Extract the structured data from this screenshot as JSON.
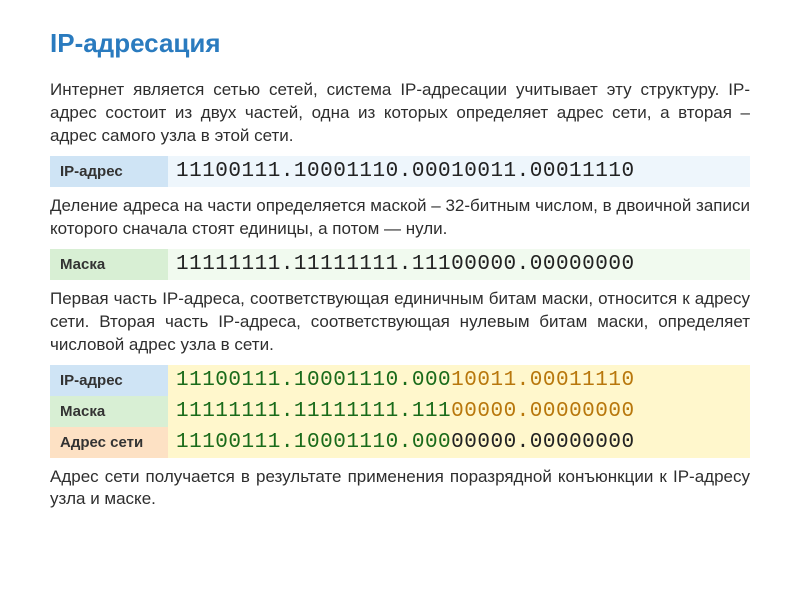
{
  "title": "IP-адресация",
  "title_color": "#2a7bbf",
  "para1": "Интернет является сетью сетей, система IP-адресации учитывает эту структуру. IP-адрес состоит из двух частей, одна из которых определяет адрес сети, а вторая – адрес самого узла в этой сети.",
  "para2": "Деление адреса на части определяется маской – 32-битным числом, в двоичной записи которого сначала стоят единицы, а потом — нули.",
  "para3": "Первая часть IP-адреса, соответствующая единичным битам маски, относится к адресу сети. Вторая часть IP-адреса, соответствующая нулевым битам маски, определяет числовой адрес узла в сети.",
  "para4": "Адрес сети получается в результате применения поразрядной конъюнкции к IP-адресу узла и маске.",
  "labels": {
    "ip": "IP-адрес",
    "mask": "Маска",
    "netaddr": "Адрес сети"
  },
  "row1": {
    "value": "11100111.10001110.00010011.00011110"
  },
  "row2": {
    "value": "11111111.11111111.11100000.00000000"
  },
  "row3_ip": {
    "net": "11100111.10001110.000",
    "host": "10011.00011110"
  },
  "row3_mask": {
    "ones": "11111111.11111111.111",
    "zeros": "00000.00000000"
  },
  "row3_netaddr": {
    "net": "11100111.10001110.000",
    "rest": "00000.00000000"
  },
  "colors": {
    "title": "#2a7bbf",
    "label_blue": "#cfe4f5",
    "label_green": "#d8efd4",
    "label_orange": "#fde1c4",
    "val_blue_light": "#eef6fc",
    "val_green_light": "#f1faef",
    "val_yellow": "#fff7cc",
    "seg_green": "#1a6b1a",
    "seg_orange": "#b8770c",
    "text": "#2e2e2e"
  }
}
